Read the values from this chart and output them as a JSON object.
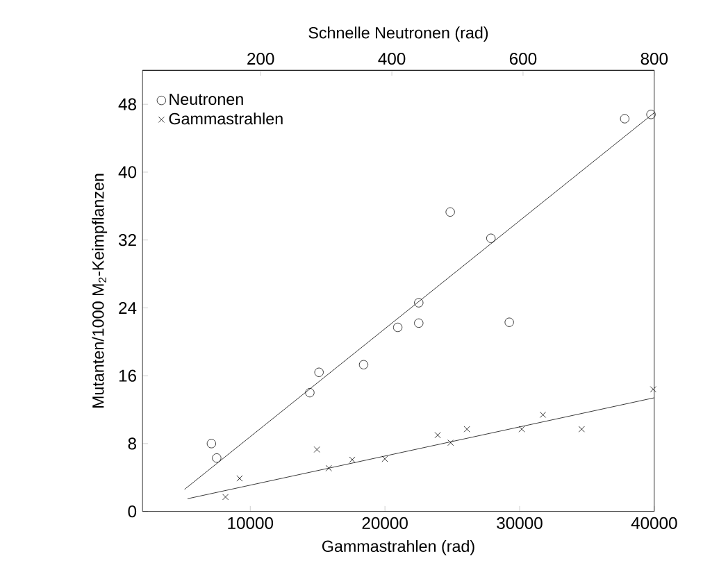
{
  "chart_data": {
    "type": "scatter",
    "xlabel": "Gammastrahlen (rad)",
    "x2label": "Schnelle Neutronen (rad)",
    "ylabel": "Mutanten/1000 M$_{2}$-Keimpflanzen",
    "xlim": [
      2000,
      40000
    ],
    "xticks": [
      10000,
      20000,
      30000,
      40000
    ],
    "x2lim": [
      20,
      800
    ],
    "x2ticks": [
      200,
      400,
      600,
      800
    ],
    "ylim": [
      0,
      52
    ],
    "yticks": [
      0,
      8,
      16,
      24,
      32,
      40,
      48
    ],
    "grid": false,
    "legend": "top left",
    "series": [
      {
        "name": "Neutronen",
        "axis": "x2",
        "marker": "circle",
        "color": "#000000",
        "x": [
          125,
          133,
          275,
          289,
          357,
          409,
          441,
          441,
          489,
          551,
          579,
          755,
          795
        ],
        "values": [
          8,
          6.3,
          14,
          16.4,
          17.3,
          21.7,
          22.2,
          24.6,
          35.3,
          32.2,
          22.3,
          46.3,
          46.8
        ]
      },
      {
        "name": "Gammastrahlen",
        "marker": "cross",
        "color": "#000000",
        "x": [
          8160,
          9210,
          14950,
          15830,
          17570,
          19990,
          23920,
          24880,
          26090,
          30160,
          31730,
          34610,
          39920
        ],
        "values": [
          1.7,
          3.9,
          7.3,
          5.1,
          6.1,
          6.2,
          9.0,
          8.1,
          9.7,
          9.7,
          11.4,
          9.7,
          14.4
        ]
      },
      {
        "type": "line",
        "axis": "x2",
        "marker": "none",
        "line_style": "solid",
        "color": "#000000",
        "x": [
          84,
          800
        ],
        "values": [
          2.6,
          47
        ]
      },
      {
        "type": "line",
        "marker": "none",
        "line_style": "solid",
        "color": "#000000",
        "x": [
          5340,
          40000
        ],
        "values": [
          1.5,
          13.4
        ]
      }
    ]
  }
}
